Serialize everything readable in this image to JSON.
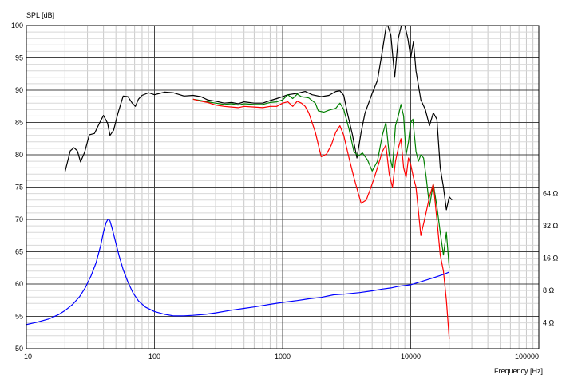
{
  "chart_data": {
    "type": "line",
    "ylabel": "SPL [dB]",
    "xlabel": "Frequency [Hz]",
    "x_scale": "log",
    "xlim": [
      10,
      100000
    ],
    "ylim": [
      50,
      100
    ],
    "grid": true,
    "x_ticks": [
      {
        "value": 10,
        "label": "10"
      },
      {
        "value": 100,
        "label": "100"
      },
      {
        "value": 1000,
        "label": "1000"
      },
      {
        "value": 10000,
        "label": "10000"
      },
      {
        "value": 100000,
        "label": "100000"
      }
    ],
    "y_ticks": [
      {
        "value": 50,
        "label": "50"
      },
      {
        "value": 55,
        "label": "55"
      },
      {
        "value": 60,
        "label": "60"
      },
      {
        "value": 65,
        "label": "65"
      },
      {
        "value": 70,
        "label": "70"
      },
      {
        "value": 75,
        "label": "75"
      },
      {
        "value": 80,
        "label": "80"
      },
      {
        "value": 85,
        "label": "85"
      },
      {
        "value": 90,
        "label": "90"
      },
      {
        "value": 95,
        "label": "95"
      },
      {
        "value": 100,
        "label": "100"
      }
    ],
    "impedance_ticks": [
      {
        "ohms": 4,
        "label": "4 Ω"
      },
      {
        "ohms": 8,
        "label": "8 Ω"
      },
      {
        "ohms": 16,
        "label": "16 Ω"
      },
      {
        "ohms": 32,
        "label": "32 Ω"
      },
      {
        "ohms": 64,
        "label": "64 Ω"
      }
    ],
    "series": [
      {
        "color": "#000000",
        "points": [
          [
            20,
            77.3
          ],
          [
            22,
            80.6
          ],
          [
            23.5,
            81.1
          ],
          [
            25,
            80.6
          ],
          [
            26.5,
            78.9
          ],
          [
            28.5,
            80.4
          ],
          [
            31,
            83.1
          ],
          [
            34,
            83.3
          ],
          [
            37,
            84.8
          ],
          [
            40,
            86.1
          ],
          [
            43,
            84.9
          ],
          [
            45,
            83.0
          ],
          [
            48,
            83.8
          ],
          [
            52,
            86.5
          ],
          [
            57,
            89.1
          ],
          [
            62,
            89.0
          ],
          [
            67,
            88.0
          ],
          [
            71,
            87.5
          ],
          [
            75,
            88.6
          ],
          [
            80,
            89.2
          ],
          [
            90,
            89.6
          ],
          [
            100,
            89.3
          ],
          [
            110,
            89.5
          ],
          [
            120,
            89.7
          ],
          [
            140,
            89.6
          ],
          [
            170,
            89.1
          ],
          [
            200,
            89.2
          ],
          [
            230,
            89.0
          ],
          [
            260,
            88.5
          ],
          [
            300,
            88.3
          ],
          [
            350,
            88.0
          ],
          [
            400,
            88.1
          ],
          [
            450,
            87.9
          ],
          [
            500,
            88.2
          ],
          [
            600,
            88.0
          ],
          [
            700,
            88.0
          ],
          [
            800,
            88.4
          ],
          [
            900,
            88.7
          ],
          [
            1000,
            89.0
          ],
          [
            1100,
            89.3
          ],
          [
            1300,
            89.5
          ],
          [
            1500,
            89.8
          ],
          [
            1700,
            89.3
          ],
          [
            2000,
            89.0
          ],
          [
            2300,
            89.2
          ],
          [
            2600,
            89.8
          ],
          [
            2800,
            89.9
          ],
          [
            3000,
            89.2
          ],
          [
            3200,
            86.5
          ],
          [
            3500,
            83.2
          ],
          [
            3800,
            79.5
          ],
          [
            4100,
            83.5
          ],
          [
            4400,
            86.5
          ],
          [
            5000,
            89.5
          ],
          [
            5500,
            91.5
          ],
          [
            6000,
            96.0
          ],
          [
            6500,
            100.5
          ],
          [
            7000,
            98.5
          ],
          [
            7500,
            92.0
          ],
          [
            8000,
            98.0
          ],
          [
            8500,
            100.2
          ],
          [
            9000,
            100.0
          ],
          [
            9500,
            98.0
          ],
          [
            10000,
            95.0
          ],
          [
            10500,
            97.5
          ],
          [
            11000,
            93.0
          ],
          [
            12000,
            88.5
          ],
          [
            13000,
            87.0
          ],
          [
            14000,
            84.5
          ],
          [
            15000,
            86.5
          ],
          [
            16000,
            85.5
          ],
          [
            17000,
            78.0
          ],
          [
            18000,
            75.0
          ],
          [
            19000,
            71.5
          ],
          [
            20000,
            73.5
          ],
          [
            21000,
            73.0
          ]
        ]
      },
      {
        "color": "#008000",
        "points": [
          [
            200,
            88.6
          ],
          [
            230,
            88.4
          ],
          [
            260,
            88.2
          ],
          [
            300,
            88.0
          ],
          [
            350,
            87.8
          ],
          [
            400,
            87.9
          ],
          [
            450,
            87.7
          ],
          [
            500,
            87.9
          ],
          [
            600,
            87.8
          ],
          [
            700,
            87.8
          ],
          [
            800,
            88.1
          ],
          [
            900,
            88.2
          ],
          [
            1000,
            88.5
          ],
          [
            1100,
            89.3
          ],
          [
            1200,
            88.7
          ],
          [
            1300,
            89.4
          ],
          [
            1400,
            89.0
          ],
          [
            1600,
            88.8
          ],
          [
            1800,
            88.0
          ],
          [
            1900,
            86.8
          ],
          [
            2100,
            86.6
          ],
          [
            2300,
            86.9
          ],
          [
            2600,
            87.2
          ],
          [
            2800,
            88.0
          ],
          [
            3000,
            87.0
          ],
          [
            3300,
            84.0
          ],
          [
            3600,
            80.5
          ],
          [
            3900,
            79.8
          ],
          [
            4200,
            80.3
          ],
          [
            4600,
            79.2
          ],
          [
            5000,
            77.5
          ],
          [
            5500,
            79.0
          ],
          [
            6000,
            83.0
          ],
          [
            6400,
            85.0
          ],
          [
            6800,
            80.0
          ],
          [
            7200,
            78.0
          ],
          [
            7600,
            84.5
          ],
          [
            8000,
            86.0
          ],
          [
            8400,
            87.8
          ],
          [
            8800,
            86.0
          ],
          [
            9200,
            80.0
          ],
          [
            9600,
            82.0
          ],
          [
            10000,
            85.0
          ],
          [
            10400,
            85.5
          ],
          [
            11000,
            80.5
          ],
          [
            11500,
            79.0
          ],
          [
            12000,
            80.0
          ],
          [
            12600,
            79.5
          ],
          [
            13200,
            76.5
          ],
          [
            14000,
            72.0
          ],
          [
            15000,
            75.5
          ],
          [
            16000,
            72.0
          ],
          [
            17000,
            68.0
          ],
          [
            18000,
            64.5
          ],
          [
            19000,
            68.0
          ],
          [
            20000,
            62.5
          ]
        ]
      },
      {
        "color": "#ff0000",
        "points": [
          [
            200,
            88.6
          ],
          [
            230,
            88.3
          ],
          [
            260,
            88.1
          ],
          [
            300,
            87.7
          ],
          [
            350,
            87.5
          ],
          [
            400,
            87.4
          ],
          [
            450,
            87.3
          ],
          [
            500,
            87.5
          ],
          [
            600,
            87.4
          ],
          [
            700,
            87.3
          ],
          [
            800,
            87.5
          ],
          [
            900,
            87.5
          ],
          [
            1000,
            88.0
          ],
          [
            1100,
            88.2
          ],
          [
            1200,
            87.5
          ],
          [
            1300,
            88.3
          ],
          [
            1400,
            88.0
          ],
          [
            1500,
            87.5
          ],
          [
            1600,
            86.5
          ],
          [
            1800,
            83.5
          ],
          [
            2000,
            79.7
          ],
          [
            2200,
            80.1
          ],
          [
            2400,
            81.5
          ],
          [
            2600,
            83.5
          ],
          [
            2800,
            84.5
          ],
          [
            3000,
            83.0
          ],
          [
            3300,
            79.5
          ],
          [
            3600,
            76.5
          ],
          [
            3900,
            74.0
          ],
          [
            4100,
            72.5
          ],
          [
            4500,
            73.0
          ],
          [
            4800,
            74.5
          ],
          [
            5100,
            76.0
          ],
          [
            5500,
            78.0
          ],
          [
            6000,
            80.5
          ],
          [
            6400,
            81.5
          ],
          [
            6800,
            77.0
          ],
          [
            7200,
            75.0
          ],
          [
            7600,
            79.0
          ],
          [
            8000,
            81.0
          ],
          [
            8400,
            82.5
          ],
          [
            8800,
            78.0
          ],
          [
            9200,
            76.5
          ],
          [
            9600,
            79.5
          ],
          [
            10000,
            78.5
          ],
          [
            10500,
            76.5
          ],
          [
            11000,
            75.0
          ],
          [
            12000,
            67.5
          ],
          [
            13000,
            70.5
          ],
          [
            14000,
            73.5
          ],
          [
            15000,
            75.5
          ],
          [
            16000,
            70.0
          ],
          [
            17000,
            64.5
          ],
          [
            18000,
            62.0
          ],
          [
            19000,
            57.5
          ],
          [
            20000,
            51.5
          ]
        ]
      },
      {
        "color": "#0000ff",
        "impedance": true,
        "points": [
          [
            10,
            3.85
          ],
          [
            12,
            4.05
          ],
          [
            15,
            4.35
          ],
          [
            18,
            4.8
          ],
          [
            20,
            5.2
          ],
          [
            23,
            5.95
          ],
          [
            26,
            7.0
          ],
          [
            29,
            8.6
          ],
          [
            32,
            11.0
          ],
          [
            35,
            14.5
          ],
          [
            38,
            21.0
          ],
          [
            40,
            28.0
          ],
          [
            42,
            34.5
          ],
          [
            43.5,
            37.0
          ],
          [
            45,
            35.5
          ],
          [
            47,
            29.5
          ],
          [
            50,
            22.0
          ],
          [
            53,
            16.8
          ],
          [
            57,
            12.5
          ],
          [
            62,
            9.6
          ],
          [
            68,
            7.6
          ],
          [
            75,
            6.4
          ],
          [
            85,
            5.6
          ],
          [
            100,
            5.1
          ],
          [
            120,
            4.8
          ],
          [
            140,
            4.65
          ],
          [
            170,
            4.65
          ],
          [
            200,
            4.7
          ],
          [
            250,
            4.8
          ],
          [
            300,
            4.95
          ],
          [
            400,
            5.25
          ],
          [
            500,
            5.45
          ],
          [
            600,
            5.62
          ],
          [
            800,
            5.95
          ],
          [
            1000,
            6.2
          ],
          [
            1300,
            6.45
          ],
          [
            1600,
            6.7
          ],
          [
            2000,
            6.9
          ],
          [
            2500,
            7.3
          ],
          [
            3000,
            7.4
          ],
          [
            4000,
            7.65
          ],
          [
            5000,
            7.95
          ],
          [
            6000,
            8.25
          ],
          [
            7000,
            8.45
          ],
          [
            8000,
            8.75
          ],
          [
            10000,
            9.05
          ],
          [
            12000,
            9.65
          ],
          [
            15000,
            10.5
          ],
          [
            18000,
            11.3
          ],
          [
            20000,
            11.9
          ]
        ]
      }
    ]
  }
}
